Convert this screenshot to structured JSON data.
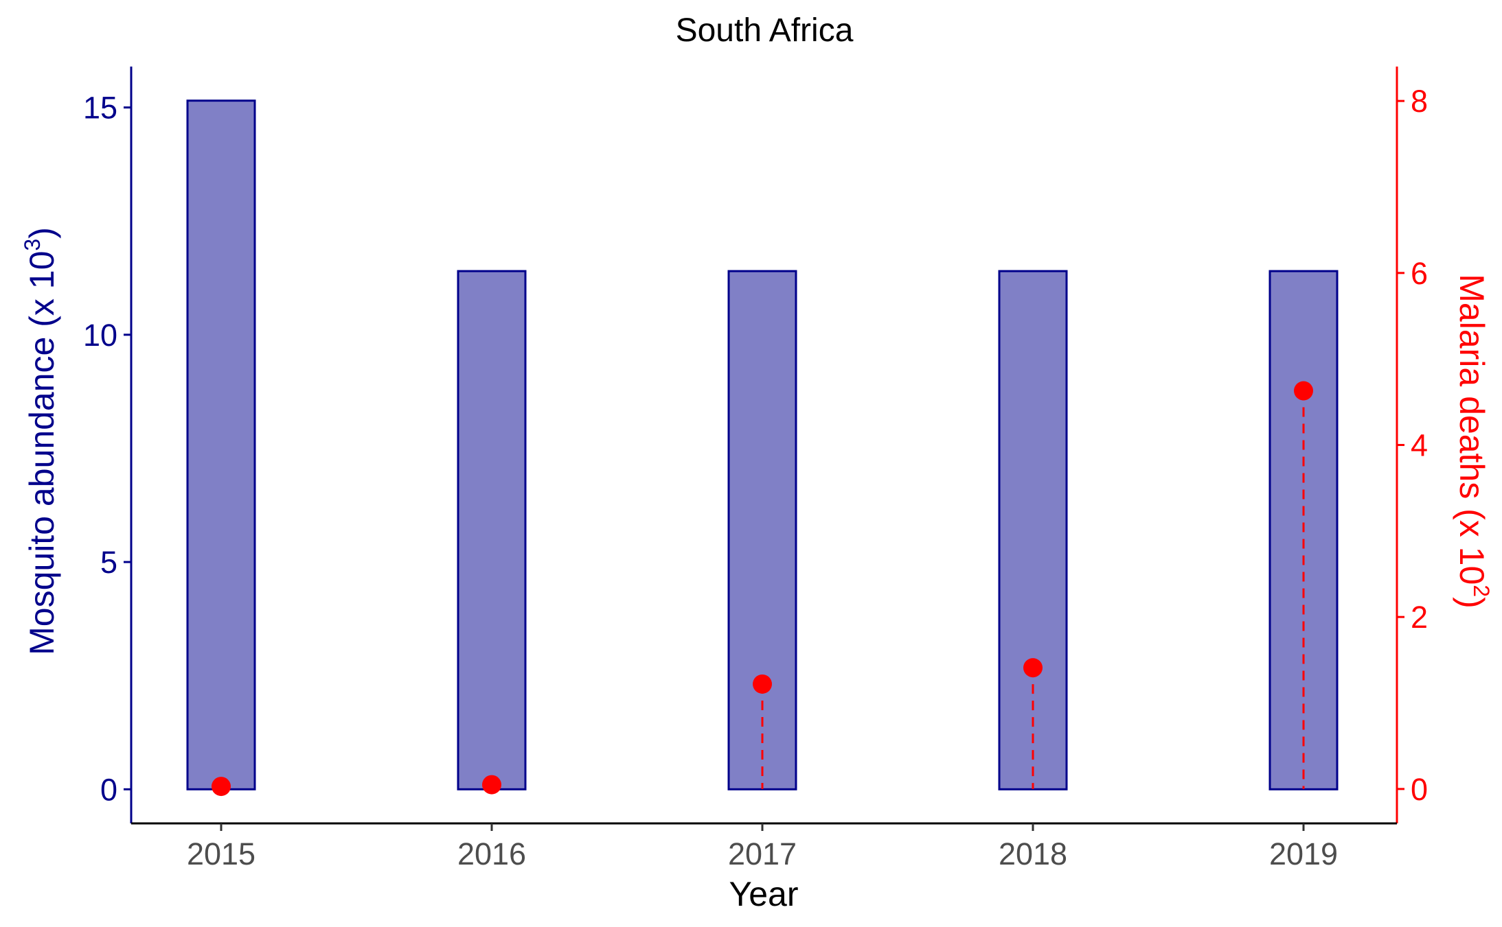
{
  "chart_data": {
    "type": "bar",
    "title": "South Africa",
    "xlabel": "Year",
    "categories": [
      "2015",
      "2016",
      "2017",
      "2018",
      "2019"
    ],
    "series": [
      {
        "name": "Mosquito abundance",
        "axis": "left",
        "kind": "bar",
        "values": [
          15.15,
          11.4,
          11.4,
          11.4,
          11.4
        ]
      },
      {
        "name": "Malaria deaths",
        "axis": "right",
        "kind": "lollipop-point",
        "values": [
          0.03,
          0.05,
          1.22,
          1.41,
          4.63
        ]
      }
    ],
    "y_left": {
      "label_main": "Mosquito abundance (x 10",
      "label_exp": "3",
      "label_close": ")",
      "ylim": [
        -0.75,
        15.9
      ],
      "ticks": [
        "0",
        "5",
        "10",
        "15"
      ],
      "color": "#00008B"
    },
    "y_right": {
      "label_main": "Malaria deaths (x 10",
      "label_exp": "2",
      "label_close": ")",
      "ylim": [
        -0.4,
        8.4
      ],
      "ticks": [
        "0",
        "2",
        "4",
        "6",
        "8"
      ],
      "color": "#FF0000"
    },
    "colors": {
      "bar_fill": "#8080C6",
      "bar_stroke": "#00008B",
      "point": "#FF0000",
      "x_tick_text": "#4D4D4D",
      "title_text": "#000000"
    },
    "grid": false,
    "legend": "none"
  }
}
